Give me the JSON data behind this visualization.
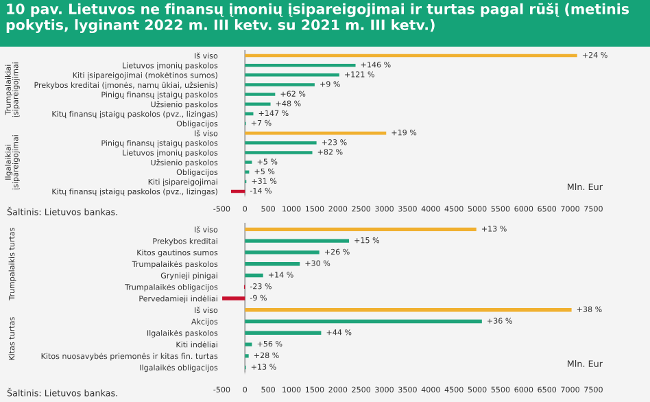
{
  "chart_data": [
    {
      "type": "bar",
      "orientation": "horizontal",
      "title": "10 pav. Lietuvos ne finansų įmonių įsipareigojimai ir turtas pagal rūšį (metinis pokytis, lyginant 2022 m. III ketv. su 2021 m. III ketv.)",
      "xlabel": "Mln. Eur",
      "categories": [
        "Iš viso",
        "Lietuvos įmonių paskolos",
        "Kiti įsipareigojimai (mokėtinos sumos)",
        "Prekybos kreditai (įmonės, namų ūkiai, užsienis)",
        "Pinigų finansų įstaigų paskolos",
        "Užsienio paskolos",
        "Kitų finansų įstaigų paskolos (pvz., lizingas)",
        "Obligacijos",
        "Iš viso",
        "Pinigų finansų įstaigų paskolos",
        "Lietuvos įmonių paskolos",
        "Užsienio paskolos",
        "Obligacijos",
        "Kiti įsipareigojimai",
        "Kitų finansų įstaigų paskolos (pvz., lizingas)"
      ],
      "values": [
        7150,
        2380,
        2030,
        1500,
        650,
        550,
        180,
        20,
        3040,
        1540,
        1450,
        150,
        90,
        30,
        -300
      ],
      "colors": [
        "#f0b030",
        "#1fa37a",
        "#1fa37a",
        "#1fa37a",
        "#1fa37a",
        "#1fa37a",
        "#1fa37a",
        "#1fa37a",
        "#f0b030",
        "#1fa37a",
        "#1fa37a",
        "#1fa37a",
        "#1fa37a",
        "#1fa37a",
        "#c8102e"
      ],
      "xlim": [
        -500,
        7700
      ],
      "xticks": [
        -500,
        0,
        500,
        1000,
        1500,
        2000,
        2500,
        3000,
        3500,
        4000,
        4500,
        5000,
        5500,
        6000,
        6500,
        7000,
        7500
      ],
      "annotations": [
        "Trumpalaikiai\nįsipareigojimai",
        "Ilgalaikiai\nįsipareigojimai",
        "+24 %",
        "+146 %",
        "+121 %",
        "+9 %",
        "+62 %",
        "+48 %",
        "+147 %",
        "+7 %",
        "+19 %",
        "+23 %",
        "+82 %",
        "+5 %",
        "+5 %",
        "+31 %",
        "-14 %",
        "Šaltinis: Lietuvos bankas."
      ]
    },
    {
      "type": "bar",
      "orientation": "horizontal",
      "xlabel": "Mln. Eur",
      "categories": [
        "Iš viso",
        "Prekybos kreditai",
        "Kitos gautinos sumos",
        "Trumpalaikės paskolos",
        "Grynieji pinigai",
        "Trumpalaikės obligacijos",
        "Pervedamieji indėliai",
        "Iš viso",
        "Akcijos",
        "Ilgalaikės paskolos",
        "Kiti indėliai",
        "Kitos nuosavybės priemonės ir kitas fin. turtas",
        "Ilgalaikės obligacijos"
      ],
      "values": [
        4980,
        2240,
        1600,
        1180,
        390,
        -20,
        -490,
        7030,
        5100,
        1640,
        150,
        80,
        20
      ],
      "colors": [
        "#f0b030",
        "#1fa37a",
        "#1fa37a",
        "#1fa37a",
        "#1fa37a",
        "#c8102e",
        "#c8102e",
        "#f0b030",
        "#1fa37a",
        "#1fa37a",
        "#1fa37a",
        "#1fa37a",
        "#1fa37a"
      ],
      "xlim": [
        -500,
        7700
      ],
      "xticks": [
        -500,
        0,
        500,
        1000,
        1500,
        2000,
        2500,
        3000,
        3500,
        4000,
        4500,
        5000,
        5500,
        6000,
        6500,
        7000,
        7500
      ],
      "annotations": [
        "Trumpalaikis turtas",
        "Kitas turtas",
        "+13 %",
        "+15 %",
        "+26 %",
        "+30 %",
        "+14 %",
        "-23 %",
        "-9 %",
        "+38 %",
        "+36 %",
        "+44 %",
        "+56 %",
        "+28 %",
        "+13 %",
        "Šaltinis: Lietuvos bankas."
      ]
    }
  ]
}
